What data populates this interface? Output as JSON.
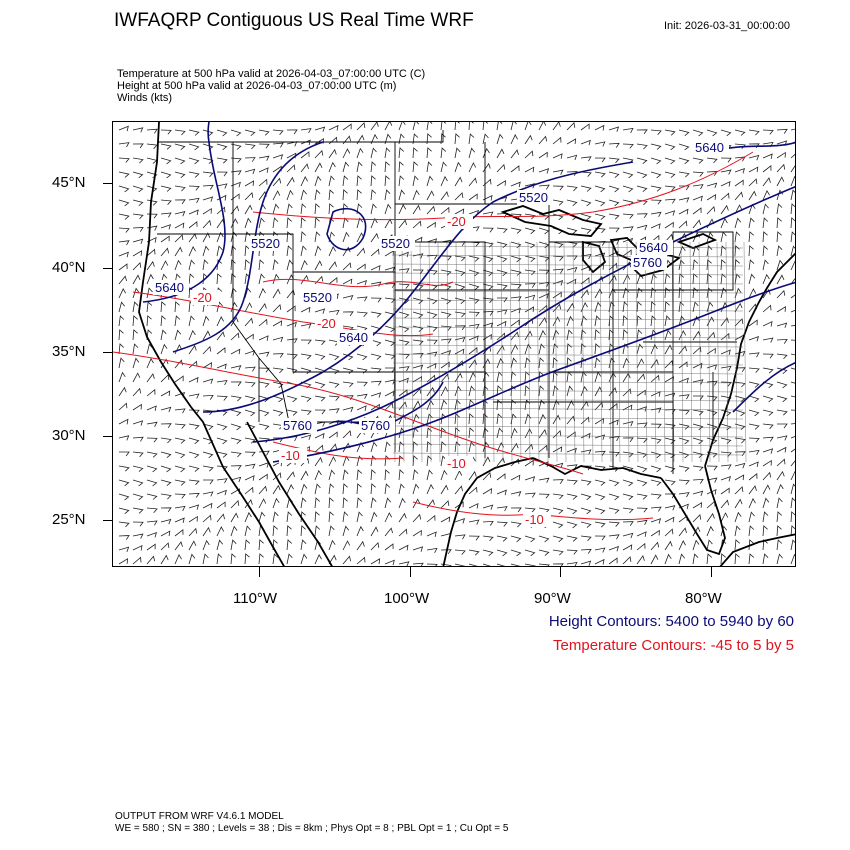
{
  "header": {
    "title": "IWFAQRP Contiguous US Real Time WRF",
    "init": "Init: 2026-03-31_00:00:00"
  },
  "fields": {
    "line1": "Temperature at 500 hPa valid at 2026-04-03_07:00:00 UTC   (C)",
    "line2": "Height at 500 hPa valid at 2026-04-03_07:00:00 UTC   (m)",
    "line3": "Winds   (kts)"
  },
  "axes": {
    "lat_ticks": [
      "45°N",
      "40°N",
      "35°N",
      "30°N",
      "25°N"
    ],
    "lon_ticks": [
      "110°W",
      "100°W",
      "90°W",
      "80°W"
    ]
  },
  "contour_labels": {
    "height": [
      "5640",
      "5520",
      "5520",
      "5640",
      "5760",
      "5520",
      "5640",
      "5520",
      "5640",
      "5760",
      "5760"
    ],
    "temperature": [
      "-20",
      "-20",
      "-20",
      "-10",
      "-10",
      "-10"
    ]
  },
  "legend": {
    "height": "Height Contours: 5400 to 5940 by 60",
    "temperature": "Temperature Contours: -45 to 5 by 5",
    "height_color": "#0b0b78",
    "temperature_color": "#e0141e"
  },
  "footer": {
    "line1": "OUTPUT FROM WRF V4.6.1 MODEL",
    "line2": "WE = 580 ; SN = 380 ; Levels = 38 ; Dis = 8km ; Phys Opt = 8 ; PBL Opt = 1 ; Cu Opt = 5"
  }
}
